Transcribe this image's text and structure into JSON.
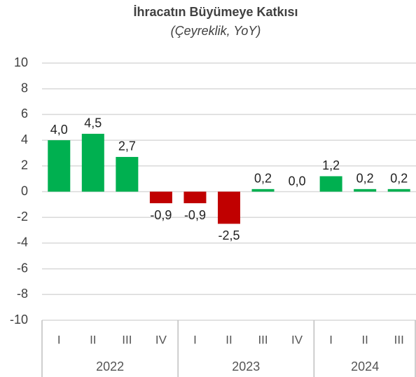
{
  "chart_data": {
    "type": "bar",
    "title": "İhracatın Büyümeye Katkısı",
    "subtitle": "(Çeyreklik, YoY)",
    "groups": [
      {
        "name": "2022",
        "categories": [
          "I",
          "II",
          "III",
          "IV"
        ]
      },
      {
        "name": "2023",
        "categories": [
          "I",
          "II",
          "III",
          "IV"
        ]
      },
      {
        "name": "2024",
        "categories": [
          "I",
          "II",
          "III"
        ]
      }
    ],
    "values": [
      4.0,
      4.5,
      2.7,
      -0.9,
      -0.9,
      -2.5,
      0.2,
      0.0,
      1.2,
      0.2,
      0.2
    ],
    "value_labels": [
      "4,0",
      "4,5",
      "2,7",
      "-0,9",
      "-0,9",
      "-2,5",
      "0,2",
      "0,0",
      "1,2",
      "0,2",
      "0,2"
    ],
    "colors": [
      "#00b050",
      "#00b050",
      "#00b050",
      "#c00000",
      "#c00000",
      "#c00000",
      "#00b050",
      "#00b050",
      "#00b050",
      "#00b050",
      "#00b050"
    ],
    "ylim": [
      -10,
      10
    ],
    "yticks": [
      -10,
      -8,
      -6,
      -4,
      -2,
      0,
      2,
      4,
      6,
      8,
      10
    ],
    "grid": true
  }
}
